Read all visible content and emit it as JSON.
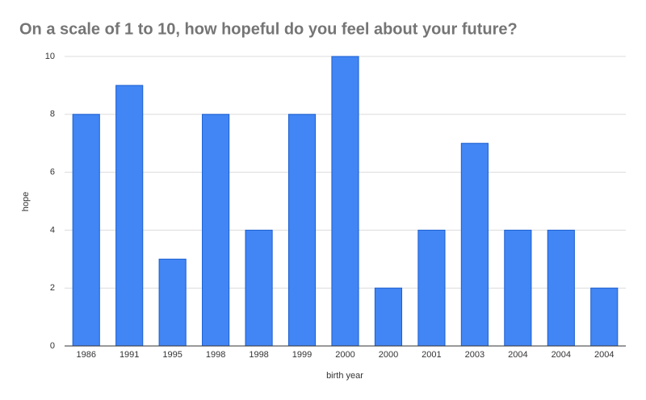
{
  "chart_data": {
    "type": "bar",
    "title": "On a scale of 1 to 10, how hopeful do you feel about your future?",
    "x_label": "birth year",
    "y_label": "hope",
    "categories": [
      "1986",
      "1991",
      "1995",
      "1998",
      "1998",
      "1999",
      "2000",
      "2000",
      "2001",
      "2003",
      "2004",
      "2004",
      "2004"
    ],
    "values": [
      8,
      9,
      3,
      8,
      4,
      8,
      10,
      2,
      4,
      7,
      4,
      4,
      2
    ],
    "color": "#4285f4",
    "ylim": [
      0,
      10
    ],
    "yticks": [
      0,
      2,
      4,
      6,
      8,
      10
    ],
    "grid": true
  }
}
